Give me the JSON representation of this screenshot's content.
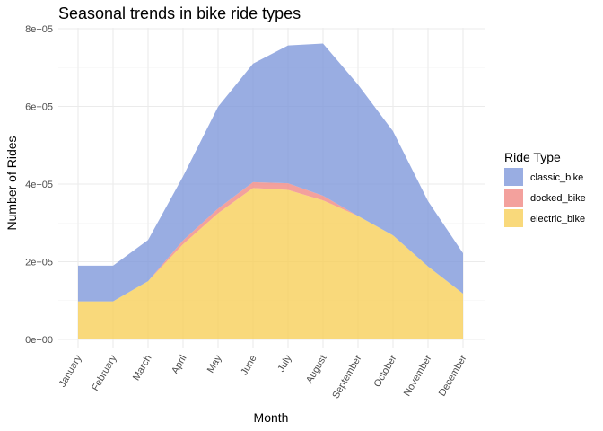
{
  "chart_data": {
    "type": "area",
    "stacked": true,
    "title": "Seasonal trends in bike ride types",
    "xlabel": "Month",
    "ylabel": "Number of Rides",
    "categories": [
      "January",
      "February",
      "March",
      "April",
      "May",
      "June",
      "July",
      "August",
      "September",
      "October",
      "November",
      "December"
    ],
    "series": [
      {
        "name": "electric_bike",
        "color": "#F7D05A",
        "values": [
          98000,
          98000,
          150000,
          245000,
          325000,
          390000,
          385000,
          358000,
          318000,
          268000,
          188000,
          118000
        ]
      },
      {
        "name": "docked_bike",
        "color": "#F08A84",
        "values": [
          0,
          0,
          0,
          10000,
          12000,
          15000,
          17000,
          12000,
          0,
          0,
          0,
          0
        ]
      },
      {
        "name": "classic_bike",
        "color": "#7F98DB",
        "values": [
          92000,
          92000,
          106000,
          165000,
          262000,
          305000,
          355000,
          392000,
          338000,
          268000,
          168000,
          104000
        ]
      }
    ],
    "ylim": [
      0,
      800000
    ],
    "y_ticks": [
      0,
      200000,
      400000,
      600000,
      800000
    ],
    "y_tick_labels": [
      "0e+00",
      "2e+05",
      "4e+05",
      "6e+05",
      "8e+05"
    ],
    "grid": true,
    "legend": {
      "title": "Ride Type",
      "position": "right",
      "order": [
        "classic_bike",
        "docked_bike",
        "electric_bike"
      ]
    },
    "area_opacity": 0.8
  }
}
